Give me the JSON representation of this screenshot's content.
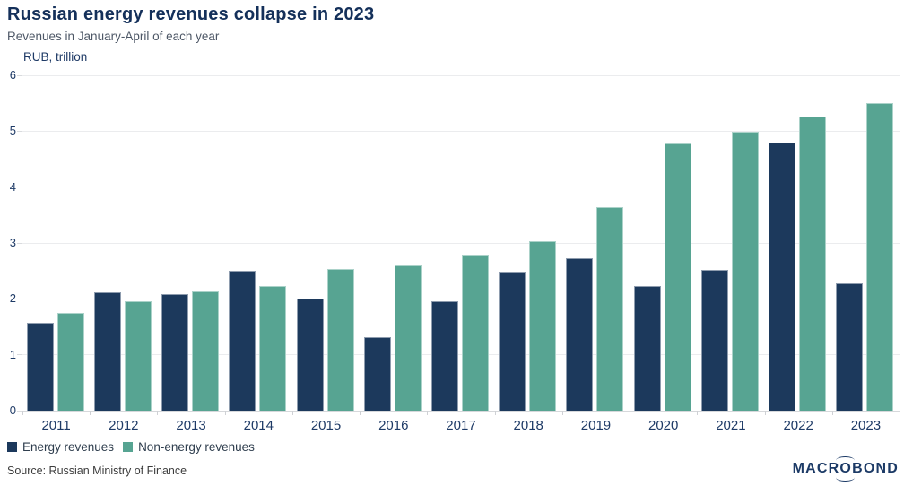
{
  "header": {
    "title": "Russian energy revenues collapse in 2023",
    "subtitle": "Revenues in January-April of each year"
  },
  "chart_data": {
    "type": "bar",
    "title": "Russian energy revenues collapse in 2023",
    "subtitle": "Revenues in January-April of each year",
    "ylabel": "RUB, trillion",
    "xlabel": "",
    "categories": [
      "2011",
      "2012",
      "2013",
      "2014",
      "2015",
      "2016",
      "2017",
      "2018",
      "2019",
      "2020",
      "2021",
      "2022",
      "2023"
    ],
    "series": [
      {
        "name": "Energy revenues",
        "color": "#1c395c",
        "values": [
          1.57,
          2.11,
          2.08,
          2.51,
          2.01,
          1.31,
          1.96,
          2.49,
          2.72,
          2.23,
          2.52,
          4.79,
          2.28
        ]
      },
      {
        "name": "Non-energy revenues",
        "color": "#57a492",
        "values": [
          1.75,
          1.95,
          2.14,
          2.23,
          2.54,
          2.6,
          2.79,
          3.04,
          3.64,
          4.78,
          4.99,
          5.26,
          5.51
        ]
      }
    ],
    "ylim": [
      0,
      6
    ],
    "yticks": [
      0,
      1,
      2,
      3,
      4,
      5,
      6
    ],
    "grid": "horizontal",
    "legend_position": "bottom-left"
  },
  "footer": {
    "source": "Source: Russian Ministry of Finance",
    "logo": {
      "prefix": "MACR",
      "orbit_letter": "O",
      "suffix": "BOND"
    }
  },
  "colors": {
    "energy_bar": "#1c395c",
    "non_energy_bar": "#57a492",
    "title_text": "#14305a",
    "axis_text": "#1e3a66",
    "gridline": "#ebecee",
    "background": "#ffffff"
  }
}
